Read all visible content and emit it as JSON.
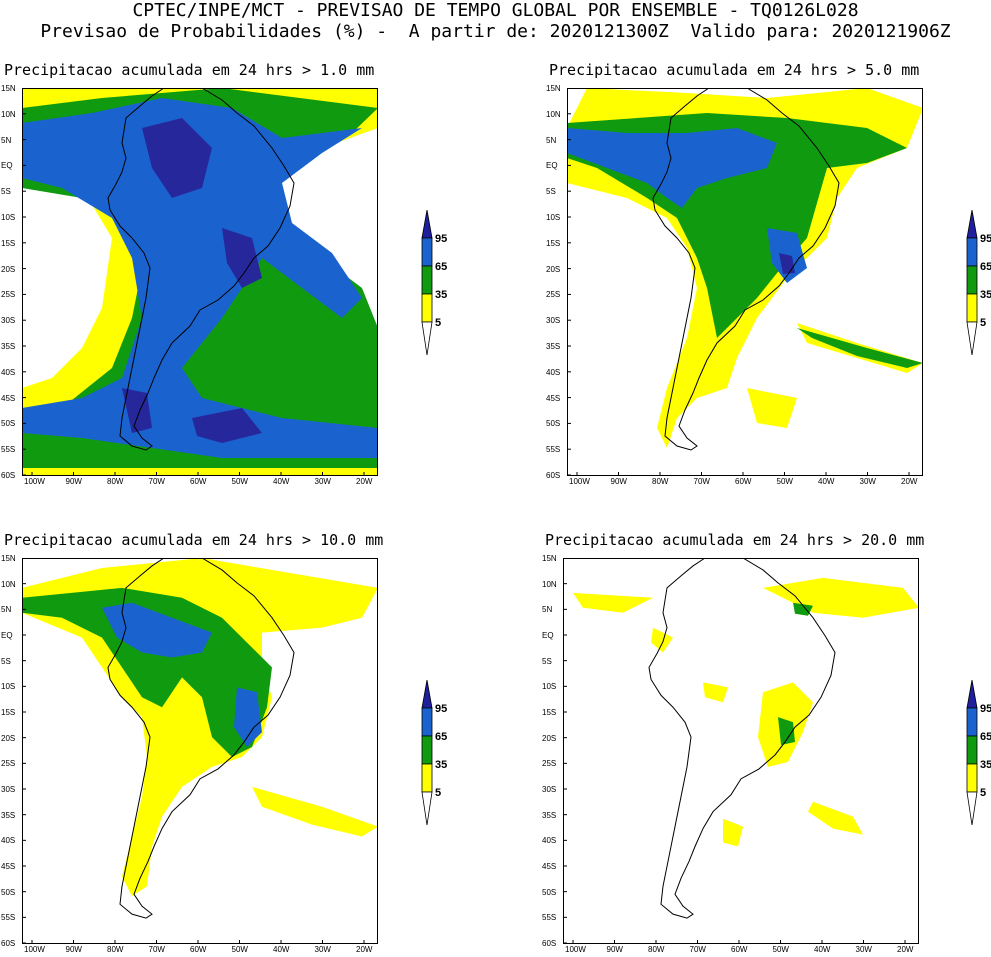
{
  "header": {
    "line1": "CPTEC/INPE/MCT - PREVISAO DE TEMPO GLOBAL POR ENSEMBLE - TQ0126L028",
    "line2": "Previsao de Probabilidades (%) -  A partir de: 2020121300Z  Valido para: 2020121906Z"
  },
  "panels": [
    {
      "title": "Precipitacao acumulada em 24 hrs > 1.0 mm"
    },
    {
      "title": "Precipitacao acumulada em 24 hrs > 5.0 mm"
    },
    {
      "title": "Precipitacao acumulada em 24 hrs > 10.0 mm"
    },
    {
      "title": "Precipitacao acumulada em 24 hrs > 20.0 mm"
    }
  ],
  "axes": {
    "lat_labels": [
      "15N",
      "10N",
      "5N",
      "EQ",
      "5S",
      "10S",
      "15S",
      "20S",
      "25S",
      "30S",
      "35S",
      "40S",
      "45S",
      "50S",
      "55S",
      "60S"
    ],
    "lon_labels": [
      "100W",
      "90W",
      "80W",
      "70W",
      "60W",
      "50W",
      "40W",
      "30W",
      "20W"
    ]
  },
  "colorbar": {
    "levels": [
      "95",
      "65",
      "35",
      "5"
    ],
    "colors": {
      "c95": "#1f1f9e",
      "c65": "#1a63cf",
      "c35": "#109a10",
      "c5": "#ffff00",
      "white": "#ffffff"
    }
  },
  "colors": {
    "yellow": "#ffff00",
    "green": "#109a10",
    "blue": "#1a63cf",
    "navy": "#27279c",
    "border": "#000000"
  }
}
